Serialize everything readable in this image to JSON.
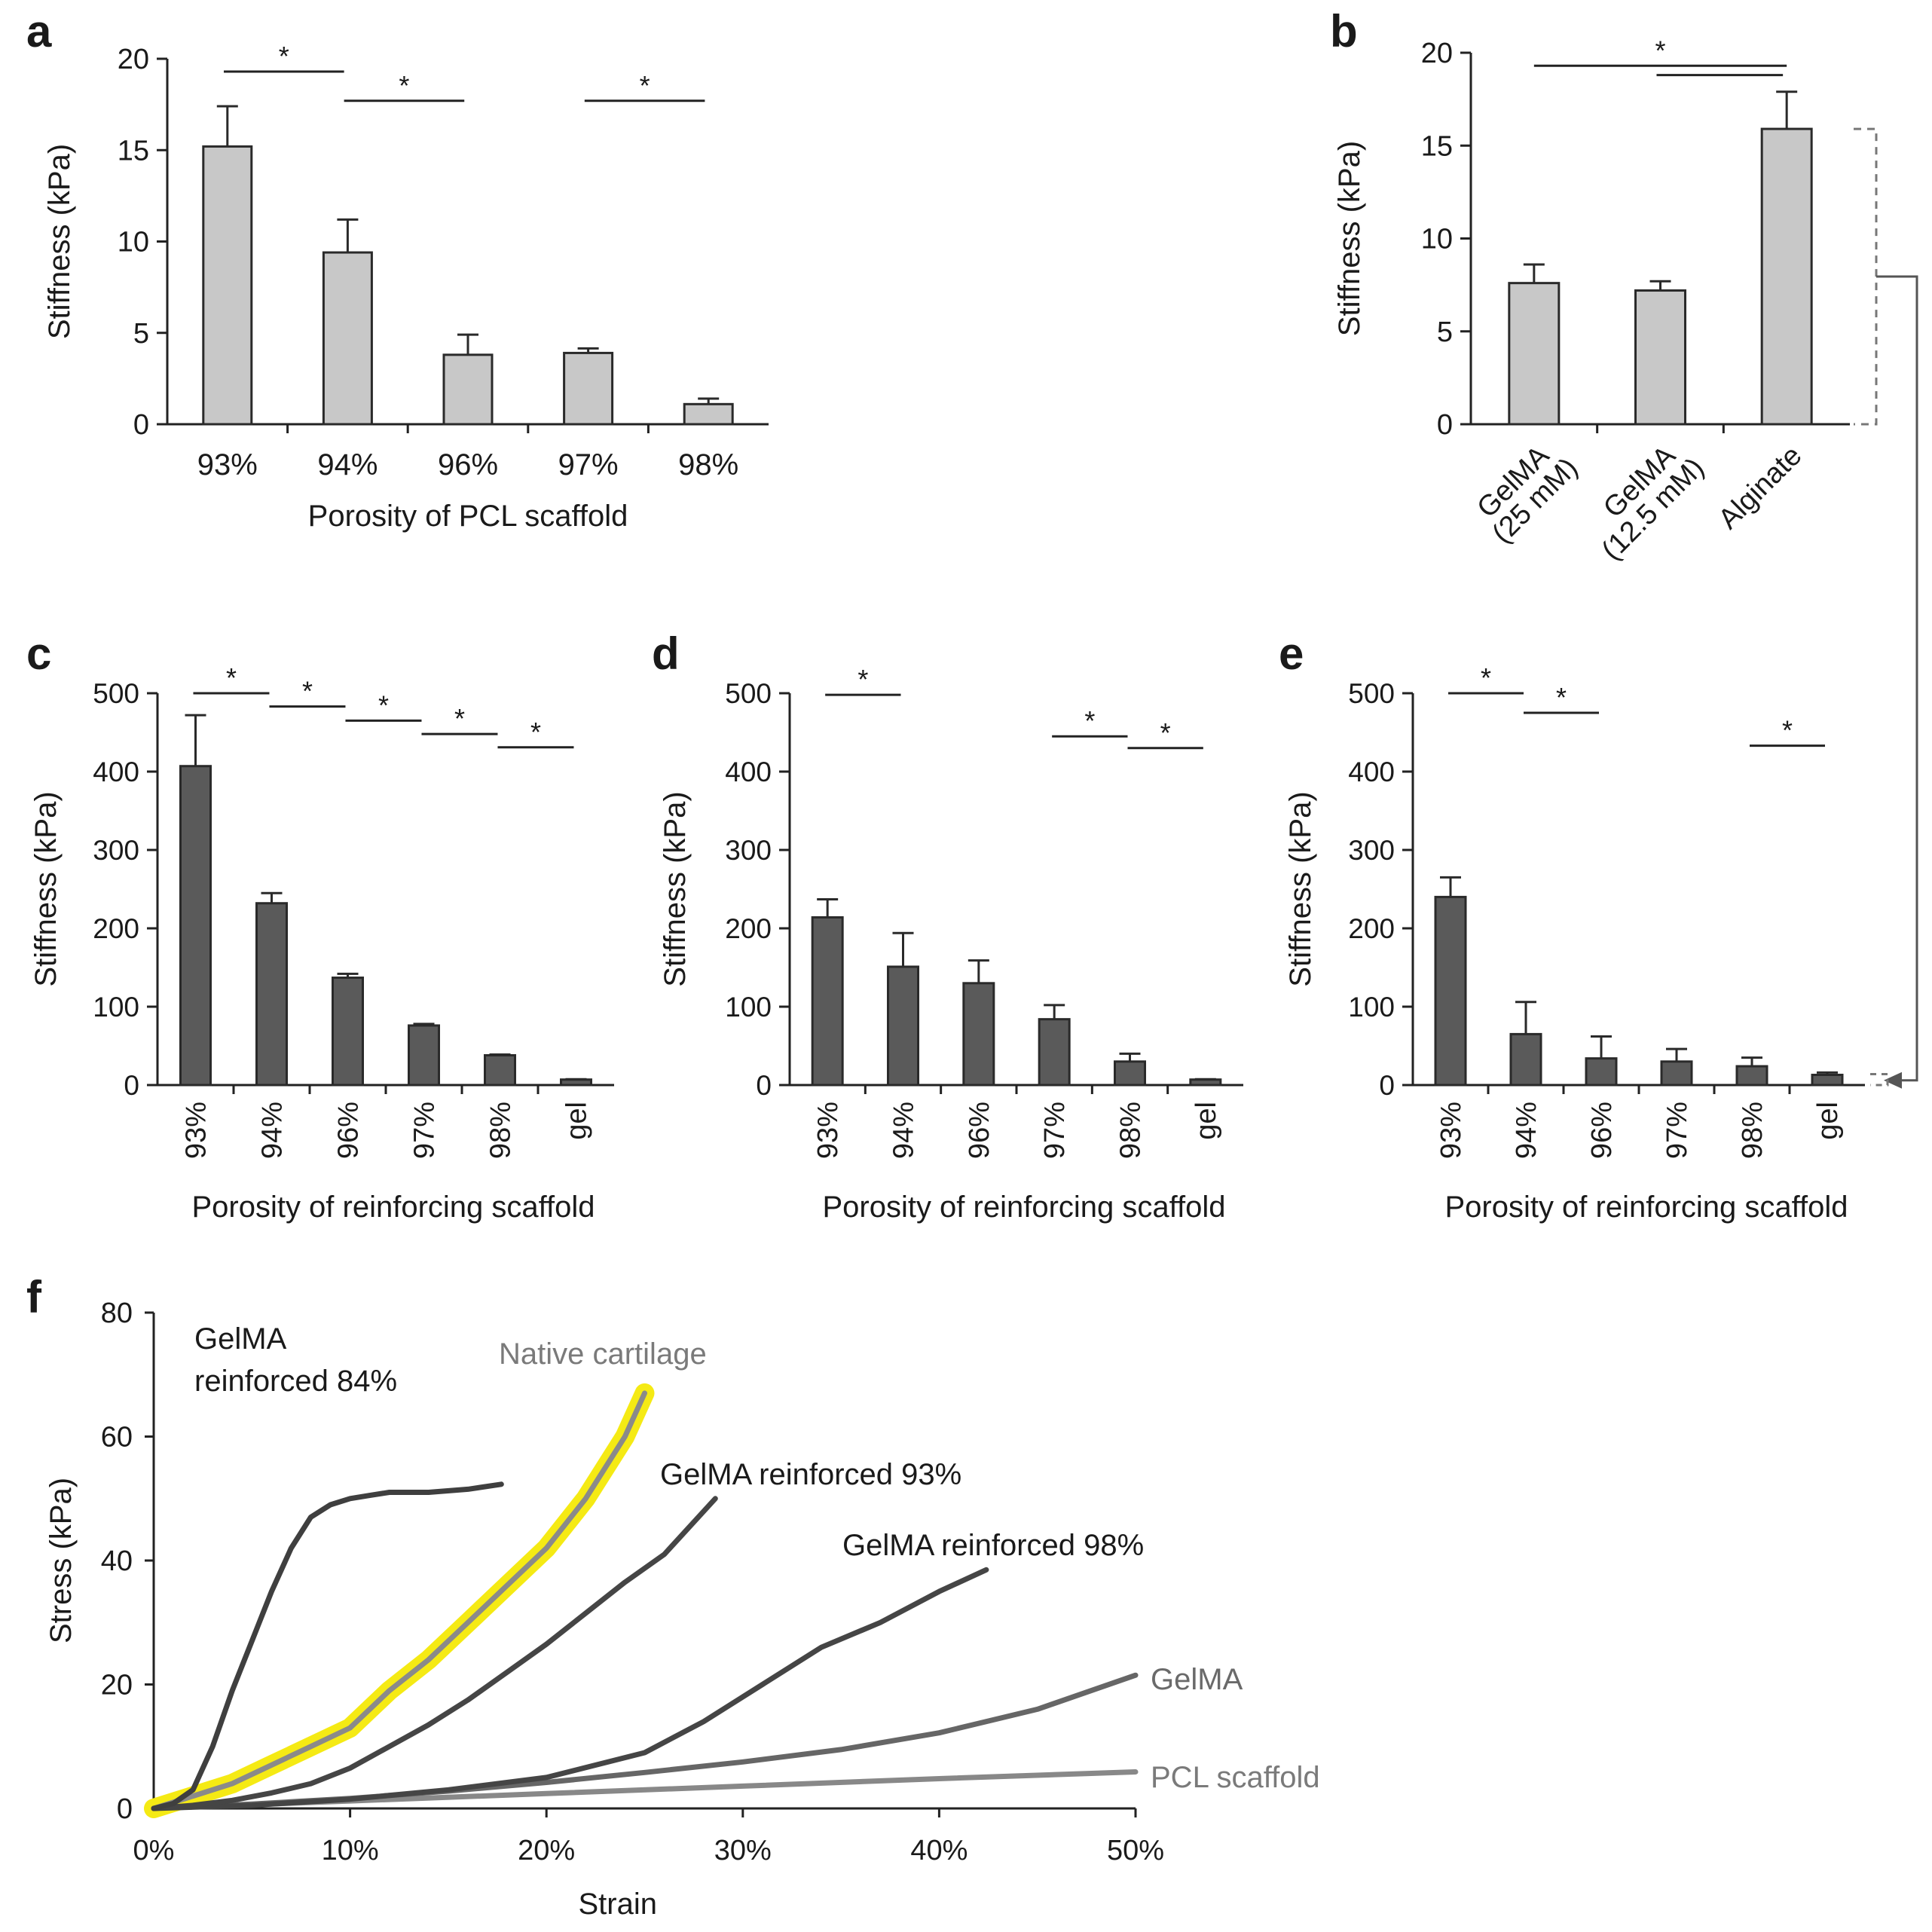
{
  "chart_data": [
    {
      "panel": "a",
      "type": "bar",
      "categories": [
        "93%",
        "94%",
        "96%",
        "97%",
        "98%"
      ],
      "values": [
        15.2,
        9.4,
        3.8,
        3.9,
        1.1
      ],
      "errors": [
        2.2,
        1.8,
        1.1,
        0.25,
        0.3
      ],
      "xlabel": "Porosity of PCL scaffold",
      "ylabel": "Stiffness (kPa)",
      "ylim": [
        0,
        20
      ],
      "yticks": [
        "0",
        "5",
        "10",
        "15",
        "20"
      ],
      "significance": [
        {
          "from": "93%",
          "to": "94%",
          "label": "*",
          "y": 19.3
        },
        {
          "from": "94%",
          "to": "96%",
          "label": "*",
          "y": 17.7
        },
        {
          "from": "97%",
          "to": "98%",
          "label": "*",
          "y": 17.7
        }
      ],
      "bar_color": "#c8c8c8"
    },
    {
      "panel": "b",
      "type": "bar",
      "categories": [
        "GelMA (25 mM)",
        "GelMA (12.5 mM)",
        "Alginate"
      ],
      "category_lines": [
        [
          "GelMA",
          "(25 mM)"
        ],
        [
          "GelMA",
          "(12.5 mM)"
        ],
        [
          "Alginate"
        ]
      ],
      "values": [
        7.6,
        7.2,
        15.9
      ],
      "errors": [
        1.0,
        0.5,
        2.0
      ],
      "xlabel": "",
      "ylabel": "Stiffness (kPa)",
      "ylim": [
        0,
        20
      ],
      "yticks": [
        "0",
        "5",
        "10",
        "15",
        "20"
      ],
      "significance": [
        {
          "from": "GelMA (25 mM)",
          "to": "Alginate",
          "label": "*",
          "y": 19.3
        },
        {
          "from": "GelMA (12.5 mM)",
          "to": "Alginate",
          "label": "",
          "y": 18.8
        }
      ],
      "bar_color": "#c8c8c8"
    },
    {
      "panel": "c",
      "type": "bar",
      "categories": [
        "93%",
        "94%",
        "96%",
        "97%",
        "98%",
        "gel"
      ],
      "values": [
        407,
        232,
        137,
        76,
        38,
        7
      ],
      "errors": [
        65,
        13,
        5,
        2,
        1,
        0.5
      ],
      "xlabel": "Porosity of reinforcing scaffold",
      "ylabel": "Stiffness (kPa)",
      "ylim": [
        0,
        500
      ],
      "yticks": [
        "0",
        "100",
        "200",
        "300",
        "400",
        "500"
      ],
      "significance": [
        {
          "from": "93%",
          "to": "94%",
          "label": "*",
          "y": 500
        },
        {
          "from": "94%",
          "to": "96%",
          "label": "*",
          "y": 483
        },
        {
          "from": "96%",
          "to": "97%",
          "label": "*",
          "y": 465
        },
        {
          "from": "97%",
          "to": "98%",
          "label": "*",
          "y": 448
        },
        {
          "from": "98%",
          "to": "gel",
          "label": "*",
          "y": 431
        }
      ],
      "bar_color": "#5a5a5a"
    },
    {
      "panel": "d",
      "type": "bar",
      "categories": [
        "93%",
        "94%",
        "96%",
        "97%",
        "98%",
        "gel"
      ],
      "values": [
        214,
        151,
        130,
        84,
        30,
        7
      ],
      "errors": [
        23,
        43,
        29,
        18,
        10,
        0.5
      ],
      "xlabel": "Porosity of reinforcing scaffold",
      "ylabel": "Stiffness (kPa)",
      "ylim": [
        0,
        500
      ],
      "yticks": [
        "0",
        "100",
        "200",
        "300",
        "400",
        "500"
      ],
      "significance": [
        {
          "from": "93%",
          "to": "94%",
          "label": "*",
          "y": 498
        },
        {
          "from": "97%",
          "to": "98%",
          "label": "*",
          "y": 445
        },
        {
          "from": "98%",
          "to": "gel",
          "label": "*",
          "y": 430
        }
      ],
      "bar_color": "#5a5a5a"
    },
    {
      "panel": "e",
      "type": "bar",
      "categories": [
        "93%",
        "94%",
        "96%",
        "97%",
        "98%",
        "gel"
      ],
      "values": [
        240,
        65,
        34,
        30,
        24,
        13
      ],
      "errors": [
        25,
        41,
        28,
        16,
        11,
        3
      ],
      "xlabel": "Porosity of reinforcing scaffold",
      "ylabel": "Stiffness (kPa)",
      "ylim": [
        0,
        500
      ],
      "yticks": [
        "0",
        "100",
        "200",
        "300",
        "400",
        "500"
      ],
      "significance": [
        {
          "from": "93%",
          "to": "94%",
          "label": "*",
          "y": 500
        },
        {
          "from": "94%",
          "to": "96%",
          "label": "*",
          "y": 475
        },
        {
          "from": "98%",
          "to": "gel",
          "label": "*",
          "y": 433
        }
      ],
      "bar_color": "#5a5a5a"
    },
    {
      "panel": "f",
      "type": "line",
      "xlabel": "Strain",
      "ylabel": "Stress (kPa)",
      "xlim": [
        0,
        50
      ],
      "ylim": [
        0,
        80
      ],
      "xticks": [
        "0%",
        "10%",
        "20%",
        "30%",
        "40%",
        "50%"
      ],
      "yticks": [
        "0",
        "20",
        "40",
        "60",
        "80"
      ],
      "series": [
        {
          "name": "GelMA reinforced 84%",
          "label_lines": [
            "GelMA",
            "reinforced 84%"
          ],
          "color": "#3f3f3f",
          "x": [
            0,
            1,
            2,
            3,
            4,
            5,
            6,
            7,
            8,
            9,
            10,
            11,
            12,
            14,
            16,
            17.7
          ],
          "y": [
            0,
            0.8,
            3,
            10,
            19,
            27,
            35,
            42,
            47,
            49,
            50,
            50.5,
            51,
            51,
            51.5,
            52.3
          ]
        },
        {
          "name": "Native cartilage",
          "label_lines": [
            "Native cartilage"
          ],
          "color": "#8a8a8a",
          "highlight": "#f5ea14",
          "x": [
            0,
            2,
            4,
            6,
            8,
            10,
            12,
            14,
            16,
            18,
            20,
            22,
            24,
            25
          ],
          "y": [
            0,
            2,
            4,
            7,
            10,
            13,
            19,
            24,
            30,
            36,
            42,
            50,
            60,
            67
          ]
        },
        {
          "name": "GelMA reinforced 93%",
          "label_lines": [
            "GelMA reinforced 93%"
          ],
          "color": "#454545",
          "x": [
            0,
            2,
            4,
            6,
            8,
            10,
            12,
            14,
            16,
            18,
            20,
            22,
            24,
            26,
            28.6
          ],
          "y": [
            0,
            0.5,
            1.3,
            2.5,
            4,
            6.5,
            10,
            13.5,
            17.5,
            22,
            26.5,
            31.5,
            36.5,
            41,
            50
          ]
        },
        {
          "name": "GelMA reinforced 98%",
          "label_lines": [
            "GelMA reinforced 98%"
          ],
          "color": "#454545",
          "x": [
            0,
            5,
            10,
            15,
            20,
            25,
            28,
            31,
            34,
            37,
            40,
            42.4
          ],
          "y": [
            0,
            0.5,
            1.5,
            3,
            5,
            9,
            14,
            20,
            26,
            30,
            35,
            38.5
          ]
        },
        {
          "name": "GelMA",
          "label_lines": [
            "GelMA"
          ],
          "color": "#666666",
          "x": [
            0,
            5,
            10,
            15,
            20,
            25,
            30,
            35,
            40,
            45,
            50
          ],
          "y": [
            0,
            0.7,
            1.6,
            2.8,
            4.2,
            5.8,
            7.5,
            9.5,
            12.2,
            16,
            21.5
          ]
        },
        {
          "name": "PCL scaffold",
          "label_lines": [
            "PCL scaffold"
          ],
          "color": "#888888",
          "x": [
            0,
            10,
            20,
            30,
            40,
            50
          ],
          "y": [
            0,
            1.2,
            2.4,
            3.6,
            4.8,
            5.9
          ]
        }
      ]
    }
  ]
}
